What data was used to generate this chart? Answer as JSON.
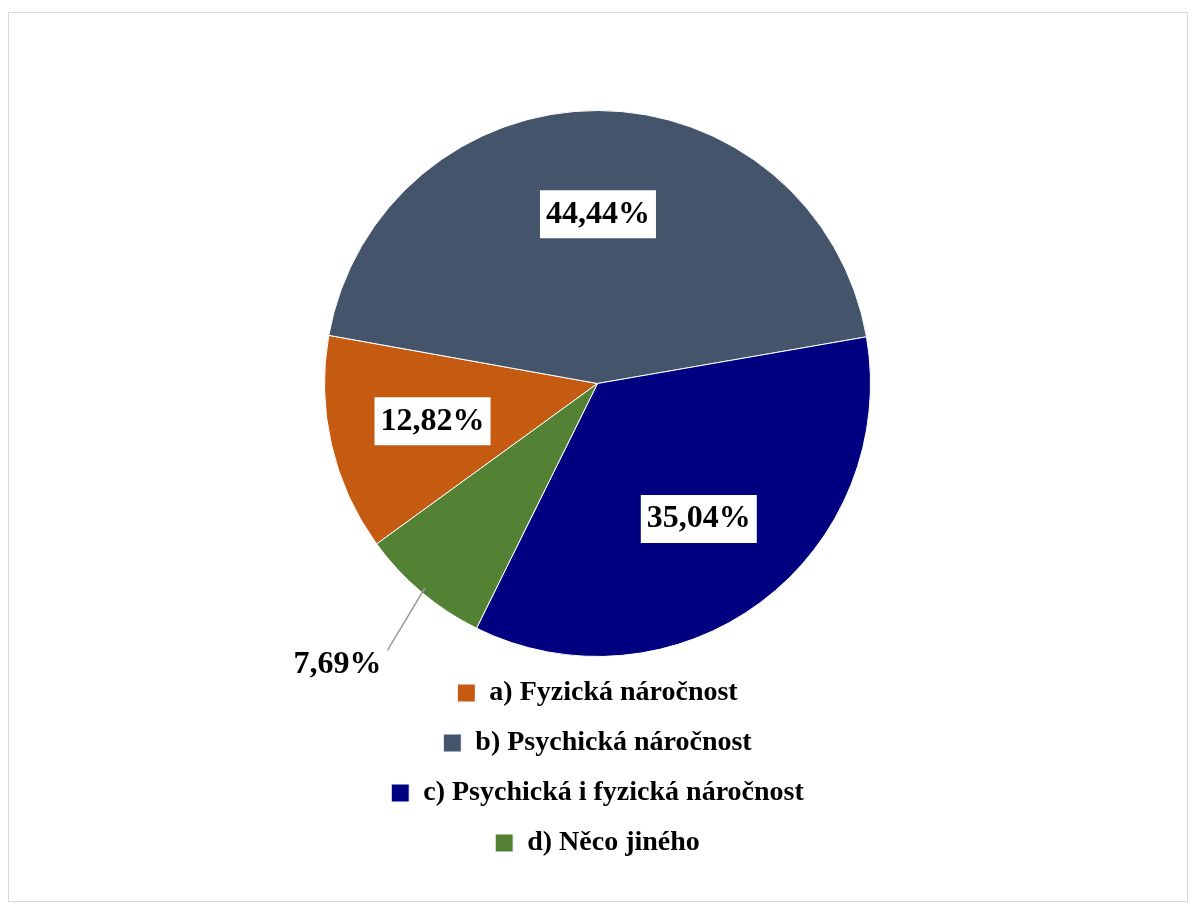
{
  "chart_data": {
    "type": "pie",
    "categories": [
      "a) Fyzická náročnost",
      "b) Psychická náročnost",
      "c) Psychická i fyzická náročnost",
      "d) Něco jiného"
    ],
    "values": [
      12.82,
      44.44,
      35.04,
      7.69
    ],
    "colors": [
      "#c55a11",
      "#44546a",
      "#000080",
      "#548235"
    ],
    "value_labels": [
      "12,82%",
      "44,44%",
      "35,04%",
      "7,69%"
    ],
    "legend": "bottom"
  }
}
